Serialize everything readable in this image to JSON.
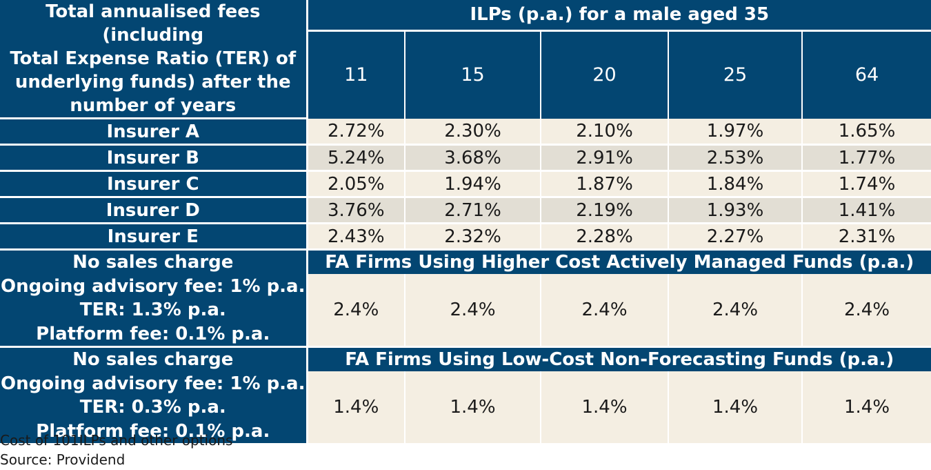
{
  "header": {
    "corner_lines": [
      "Total annualised fees (including",
      "Total Expense Ratio (TER) of",
      "underlying funds) after the",
      "number of years"
    ],
    "ilp_title": "ILPs (p.a.) for a male aged 35",
    "years": [
      "11",
      "15",
      "20",
      "25",
      "64"
    ]
  },
  "insurers": [
    {
      "name": "Insurer A",
      "values": [
        "2.72%",
        "2.30%",
        "2.10%",
        "1.97%",
        "1.65%"
      ]
    },
    {
      "name": "Insurer B",
      "values": [
        "5.24%",
        "3.68%",
        "2.91%",
        "2.53%",
        "1.77%"
      ]
    },
    {
      "name": "Insurer C",
      "values": [
        "2.05%",
        "1.94%",
        "1.87%",
        "1.84%",
        "1.74%"
      ]
    },
    {
      "name": "Insurer D",
      "values": [
        "3.76%",
        "2.71%",
        "2.19%",
        "1.93%",
        "1.41%"
      ]
    },
    {
      "name": "Insurer E",
      "values": [
        "2.43%",
        "2.32%",
        "2.28%",
        "2.27%",
        "2.31%"
      ]
    }
  ],
  "fa_sections": [
    {
      "label_lines": [
        "No sales charge",
        "Ongoing advisory fee: 1% p.a.",
        "TER: 1.3% p.a.",
        "Platform fee: 0.1% p.a."
      ],
      "title": "FA Firms Using Higher Cost Actively Managed Funds (p.a.)",
      "values": [
        "2.4%",
        "2.4%",
        "2.4%",
        "2.4%",
        "2.4%"
      ]
    },
    {
      "label_lines": [
        "No sales charge",
        "Ongoing advisory fee: 1% p.a.",
        "TER: 0.3% p.a.",
        "Platform fee: 0.1% p.a."
      ],
      "title": "FA Firms Using Low-Cost Non-Forecasting Funds (p.a.)",
      "values": [
        "1.4%",
        "1.4%",
        "1.4%",
        "1.4%",
        "1.4%"
      ]
    }
  ],
  "caption": {
    "line1": "Cost of 101ILPs and other options",
    "line2": "Source: Providend"
  }
}
